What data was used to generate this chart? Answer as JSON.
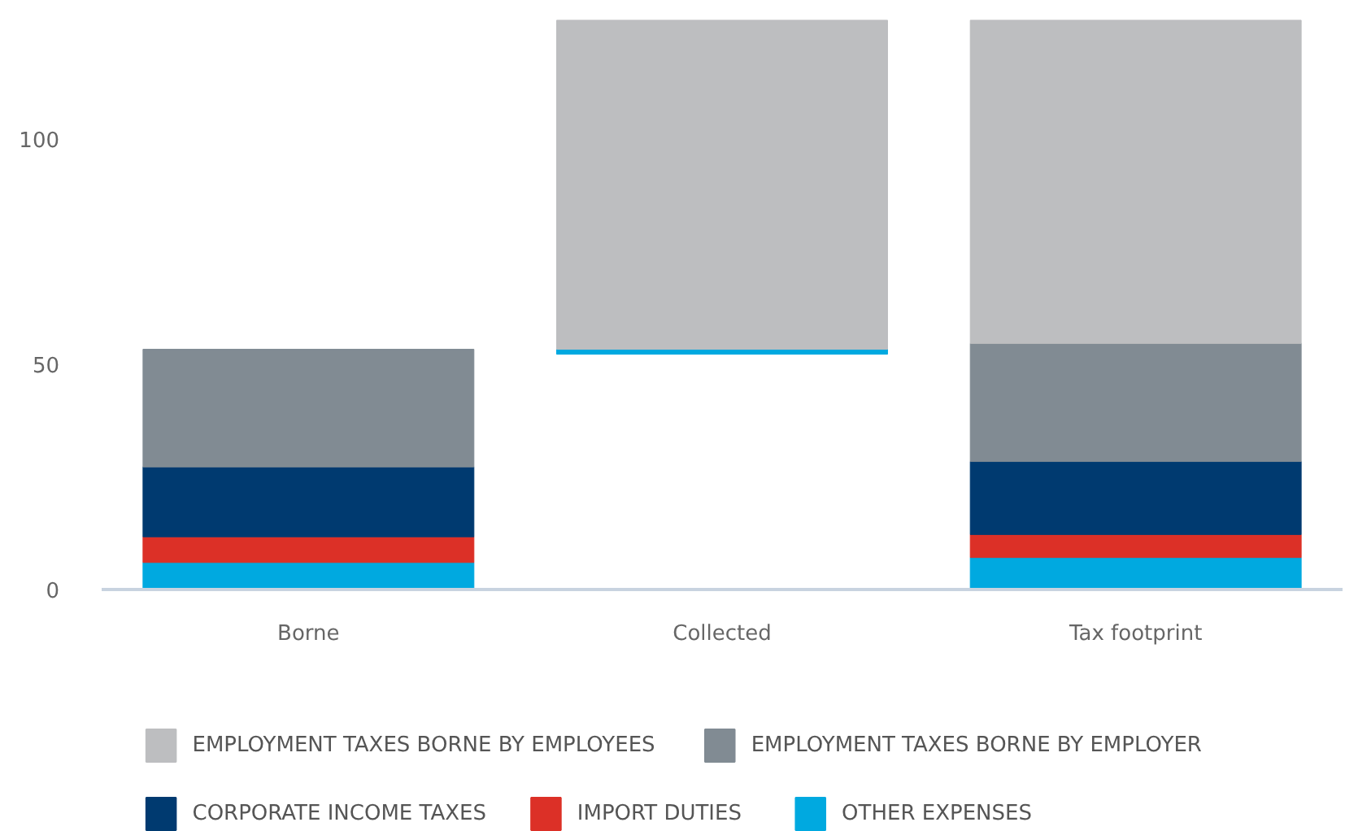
{
  "chart_data": {
    "type": "bar",
    "categories": [
      "Borne",
      "Collected",
      "Tax footprint"
    ],
    "series": [
      {
        "name": "OTHER EXPENSES",
        "color": "#00a9e0",
        "base": [
          0,
          52.2,
          0
        ],
        "values": [
          6,
          1.1,
          7.1
        ]
      },
      {
        "name": "IMPORT DUTIES",
        "color": "#dc3027",
        "base": [
          6,
          null,
          7.1
        ],
        "values": [
          5.7,
          null,
          5.1
        ]
      },
      {
        "name": "CORPORATE INCOME TAXES",
        "color": "#003a70",
        "base": [
          11.7,
          null,
          12.2
        ],
        "values": [
          15.5,
          null,
          16.2
        ]
      },
      {
        "name": "EMPLOYMENT TAXES BORNE BY EMPLOYER",
        "color": "#818b93",
        "base": [
          27.2,
          null,
          28.4
        ],
        "values": [
          26.1,
          null,
          26.2
        ]
      },
      {
        "name": "EMPLOYMENT TAXES BORNE BY EMPLOYEES",
        "color": "#bdbec0",
        "base": [
          null,
          53.3,
          54.6
        ],
        "values": [
          null,
          73,
          71.7
        ]
      }
    ],
    "ylim": [
      0,
      127
    ],
    "yticks": [
      0,
      50,
      100
    ],
    "grid": false,
    "legend": "bottom"
  }
}
